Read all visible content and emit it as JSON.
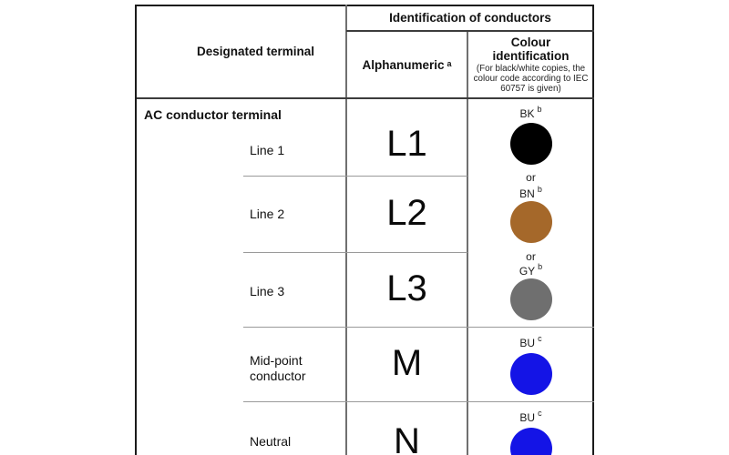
{
  "table": {
    "header": {
      "designated_terminal": "Designated terminal",
      "identification_of_conductors": "Identification of conductors",
      "alphanumeric": "Alphanumeric",
      "alphanumeric_note": "a",
      "colour_title": "Colour identification",
      "colour_subtitle": "(For black/white copies, the colour code according to IEC 60757 is given)"
    },
    "group_label": "AC conductor terminal",
    "rows": [
      {
        "terminal": "Line 1",
        "alphanumeric": "L1",
        "colour_code": "BK",
        "colour_note": "b",
        "colour_hex": "#000000",
        "or_after": "or"
      },
      {
        "terminal": "Line 2",
        "alphanumeric": "L2",
        "colour_code": "BN",
        "colour_note": "b",
        "colour_hex": "#A5682A",
        "or_after": "or"
      },
      {
        "terminal": "Line 3",
        "alphanumeric": "L3",
        "colour_code": "GY",
        "colour_note": "b",
        "colour_hex": "#6F6F6F"
      },
      {
        "terminal": "Mid-point conductor",
        "alphanumeric": "M",
        "colour_code": "BU",
        "colour_note": "c",
        "colour_hex": "#1414E6"
      },
      {
        "terminal": "Neutral",
        "alphanumeric": "N",
        "colour_code": "BU",
        "colour_note": "c",
        "colour_hex": "#1414E6"
      }
    ]
  }
}
